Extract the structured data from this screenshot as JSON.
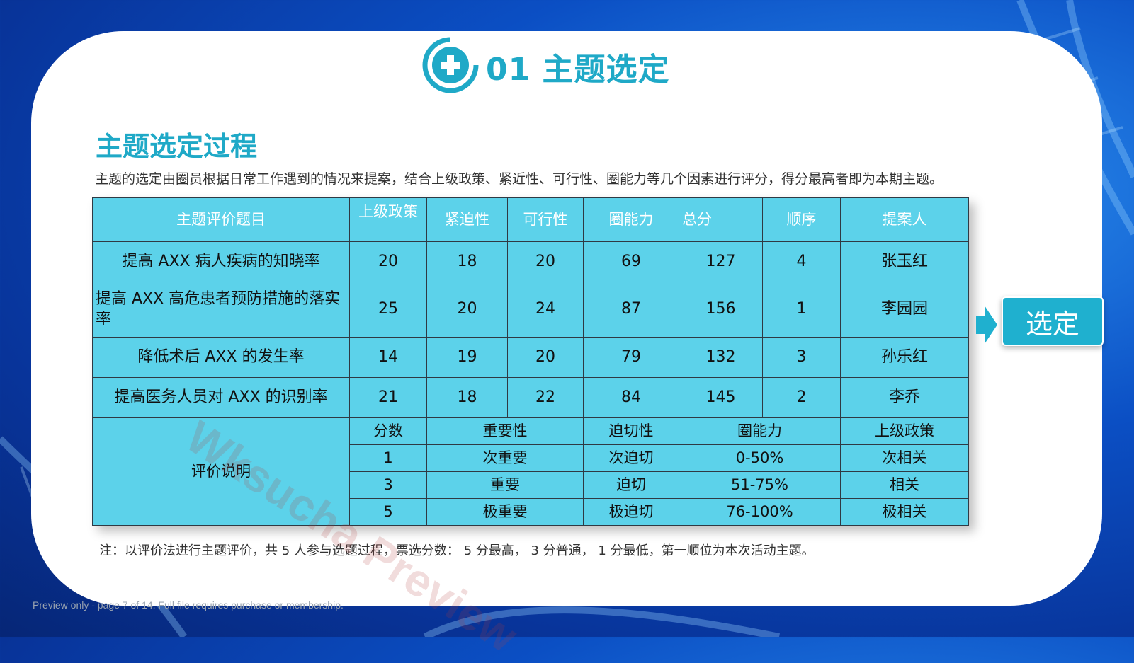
{
  "header": {
    "title": "01 主题选定"
  },
  "section": {
    "title": "主题选定过程",
    "intro": "主题的选定由圈员根据日常工作遇到的情况来提案，结合上级政策、紧近性、可行性、圈能力等几个因素进行评分，得分最高者即为本期主题。"
  },
  "table": {
    "headers": [
      "主题评价题目",
      "上级政策",
      "紧迫性",
      "可行性",
      "圈能力",
      "总分",
      "顺序",
      "提案人"
    ],
    "rows": [
      {
        "topic": "提高 AXX 病人疾病的知晓率",
        "policy": "20",
        "urgency": "18",
        "feasibility": "20",
        "ability": "69",
        "total": "127",
        "order": "4",
        "proposer": "张玉红"
      },
      {
        "topic": "提高 AXX 高危患者预防措施的落实率",
        "policy": "25",
        "urgency": "20",
        "feasibility": "24",
        "ability": "87",
        "total": "156",
        "order": "1",
        "proposer": "李园园"
      },
      {
        "topic": "降低术后 AXX 的发生率",
        "policy": "14",
        "urgency": "19",
        "feasibility": "20",
        "ability": "79",
        "total": "132",
        "order": "3",
        "proposer": "孙乐红"
      },
      {
        "topic": "提高医务人员对 AXX 的识别率",
        "policy": "21",
        "urgency": "18",
        "feasibility": "22",
        "ability": "84",
        "total": "145",
        "order": "2",
        "proposer": "李乔"
      }
    ],
    "evaluation": {
      "label": "评价说明",
      "headers": [
        "分数",
        "重要性",
        "迫切性",
        "圈能力",
        "上级政策"
      ],
      "rows": [
        [
          "1",
          "次重要",
          "次迫切",
          "0-50%",
          "次相关"
        ],
        [
          "3",
          "重要",
          "迫切",
          "51-75%",
          "相关"
        ],
        [
          "5",
          "极重要",
          "极迫切",
          "76-100%",
          "极相关"
        ]
      ]
    }
  },
  "select_button": {
    "label": "选定"
  },
  "note": "注：以评价法进行主题评价，共 5 人参与选题过程，票选分数： 5 分最高， 3 分普通， 1 分最低，第一顺位为本次活动主题。",
  "footer": "Preview only - page 7 of 14. Full file requires purchase or membership.",
  "watermark": "Wksucha Preview",
  "colors": {
    "accent": "#1fa9c7",
    "table_fill": "#5cd2ea",
    "background": "#0b4fc4"
  }
}
